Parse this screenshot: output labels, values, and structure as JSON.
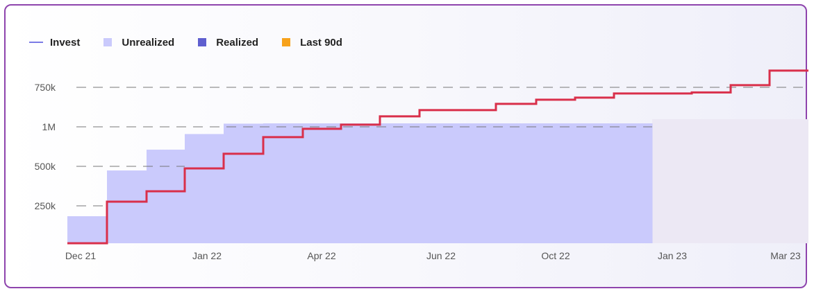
{
  "legend": {
    "items": [
      {
        "label": "Invest",
        "color": "#7a7ae6",
        "kind": "line"
      },
      {
        "label": "Unrealized",
        "color": "#cacafc",
        "kind": "swatch"
      },
      {
        "label": "Realized",
        "color": "#5f5fcf",
        "kind": "swatch"
      },
      {
        "label": "Last 90d",
        "color": "#f7a21b",
        "kind": "swatch"
      }
    ]
  },
  "colors": {
    "unrealized_fill": "#cacafc",
    "last90_fill": "#ece8f4",
    "invest_line": "#d92f4a",
    "grid": "#777777",
    "card_border": "#8e44ad"
  },
  "chart_data": {
    "type": "area",
    "y_tick_labels": [
      "750k",
      "1M",
      "500k",
      "250k"
    ],
    "x_tick_labels": [
      "Dec 21",
      "Jan 22",
      "Apr 22",
      "Jun 22",
      "Oct 22",
      "Jan 23",
      "Mar 23"
    ],
    "grid": "dashed horizontal",
    "legend_position": "top-left",
    "series": [
      {
        "name": "Unrealized",
        "type": "step-area",
        "x": [
          0,
          1,
          2,
          3,
          4,
          5,
          6,
          7,
          8,
          9,
          10,
          11,
          12,
          13,
          14
        ],
        "values": [
          130000,
          350000,
          450000,
          525000,
          575000,
          590000,
          615000,
          640000,
          720000,
          720000,
          720000,
          720000,
          720000,
          750000,
          750000
        ]
      },
      {
        "name": "Invest",
        "type": "step-line",
        "x": [
          0,
          1,
          2,
          3,
          4,
          5,
          6,
          7,
          8,
          9,
          10,
          11,
          12,
          13,
          14,
          15,
          16,
          17,
          18
        ],
        "values": [
          0,
          200000,
          250000,
          360000,
          430000,
          510000,
          550000,
          570000,
          610000,
          640000,
          640000,
          670000,
          690000,
          700000,
          720000,
          720000,
          725000,
          760000,
          830000
        ]
      },
      {
        "name": "Last 90d",
        "type": "shaded-region",
        "x_start": 15,
        "x_end": 18
      }
    ],
    "ylim": [
      0,
      1000000
    ]
  }
}
